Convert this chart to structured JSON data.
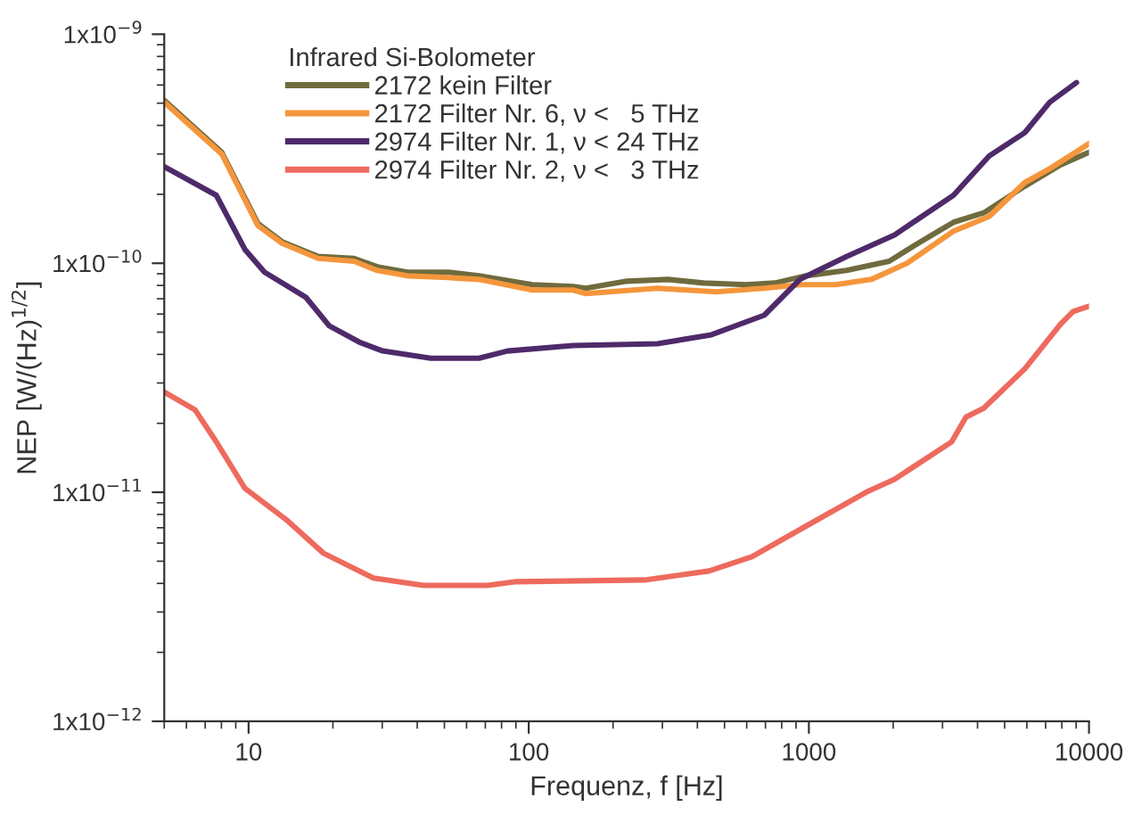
{
  "chart_data": {
    "type": "line",
    "xlabel": "Frequenz, f [Hz]",
    "ylabel": "NEP [W/(Hz)$^{1/2}$]",
    "legend_title": "Infrared Si-Bolometer",
    "log": "xy",
    "legend": "top",
    "grid": false,
    "marker": "none",
    "line_style": "solid",
    "xlim": [
      5,
      10000
    ],
    "xticks": [
      10,
      100,
      1000,
      10000
    ],
    "ylim": [
      1e-12,
      1e-09
    ],
    "yticks": [
      {
        "value": 1e-12,
        "label": "1x10$^{−12}$"
      },
      {
        "value": 1e-11,
        "label": "1x10$^{−11}$"
      },
      {
        "value": 1e-10,
        "label": "1x10$^{−10}$"
      },
      {
        "value": 1e-09,
        "label": "1x10$^{−9}$"
      }
    ],
    "series": [
      {
        "name": "2172 kein Filter",
        "color": "#6f6b3e",
        "x": [
          5,
          8.02,
          10.8,
          13.2,
          17.7,
          23.8,
          28.8,
          36.9,
          51.7,
          66.4,
          103,
          144,
          160,
          224,
          314,
          421,
          598,
          757,
          971,
          1362,
          1935,
          2446,
          3283,
          4210,
          5900,
          7910,
          10000
        ],
        "values": [
          5.14e-10,
          3.05e-10,
          1.49e-10,
          1.24e-10,
          1.07e-10,
          1.05e-10,
          9.65e-11,
          9.14e-11,
          9.14e-11,
          8.81e-11,
          8.06e-11,
          7.91e-11,
          7.78e-11,
          8.35e-11,
          8.5e-11,
          8.2e-11,
          8.06e-11,
          8.2e-11,
          8.81e-11,
          9.3e-11,
          1.02e-10,
          1.22e-10,
          1.51e-10,
          1.66e-10,
          2.17e-10,
          2.69e-10,
          3.05e-10
        ]
      },
      {
        "name": "2172 Filter Nr. 6, ν <   5 THz",
        "color": "#f5963c",
        "x": [
          5,
          8.02,
          10.8,
          13.2,
          17.7,
          23.8,
          28.8,
          36.9,
          51.7,
          66.4,
          103,
          144,
          160,
          288,
          467,
          693,
          929,
          1247,
          1671,
          2240,
          3283,
          4400,
          5900,
          7244,
          8770,
          10000
        ],
        "values": [
          5.05e-10,
          3e-10,
          1.46e-10,
          1.22e-10,
          1.05e-10,
          1.02e-10,
          9.3e-11,
          8.81e-11,
          8.66e-11,
          8.5e-11,
          7.64e-11,
          7.64e-11,
          7.37e-11,
          7.78e-11,
          7.5e-11,
          7.78e-11,
          8.06e-11,
          8.06e-11,
          8.5e-11,
          1e-10,
          1.38e-10,
          1.6e-10,
          2.25e-10,
          2.59e-10,
          3e-10,
          3.33e-10
        ]
      },
      {
        "name": "2974 Filter Nr. 1, ν < 24 THz",
        "color": "#4e2a6a",
        "x": [
          5,
          7.67,
          9.7,
          11.4,
          16.0,
          19.4,
          24.8,
          30.1,
          44.7,
          66.4,
          84,
          144,
          288,
          449,
          693,
          929,
          1362,
          2023,
          3283,
          4400,
          5900,
          7244,
          9020
        ],
        "values": [
          2.64e-10,
          1.98e-10,
          1.15e-10,
          9.14e-11,
          7.11e-11,
          5.33e-11,
          4.53e-11,
          4.14e-11,
          3.85e-11,
          3.85e-11,
          4.14e-11,
          4.37e-11,
          4.45e-11,
          4.87e-11,
          5.93e-11,
          8.5e-11,
          1.07e-10,
          1.33e-10,
          1.98e-10,
          2.94e-10,
          3.72e-10,
          5.05e-10,
          6.15e-10
        ]
      },
      {
        "name": "2974 Filter Nr. 2, ν <   3 THz",
        "color": "#ee6a5e",
        "x": [
          5,
          6.44,
          7.67,
          9.7,
          13.8,
          18.5,
          27.9,
          42.1,
          71.4,
          90.2,
          259,
          440,
          626,
          1000,
          1600,
          2023,
          3234,
          3638,
          4210,
          5900,
          7910,
          8770,
          10000
        ],
        "values": [
          2.74e-11,
          2.29e-11,
          1.66e-11,
          1.04e-11,
          7.5e-12,
          5.42e-12,
          4.22e-12,
          3.92e-12,
          3.92e-12,
          4.07e-12,
          4.14e-12,
          4.53e-12,
          5.23e-12,
          7.23e-12,
          1e-11,
          1.14e-11,
          1.66e-11,
          2.13e-11,
          2.33e-11,
          3.46e-11,
          5.42e-11,
          6.15e-11,
          6.49e-11
        ]
      }
    ]
  }
}
